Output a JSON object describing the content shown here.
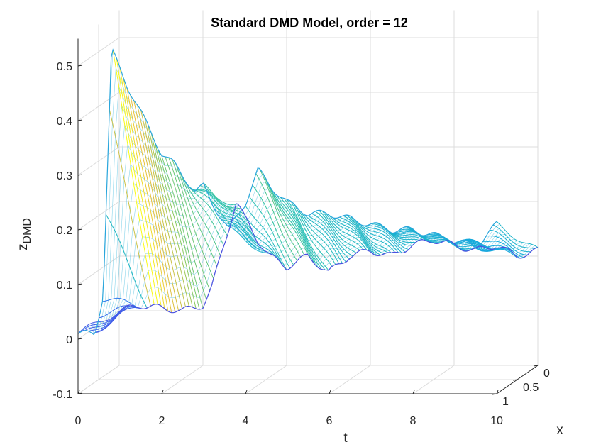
{
  "chart_data": {
    "type": "surface",
    "title": "Standard DMD Model, order = 12",
    "xlabel": "t",
    "ylabel": "x",
    "zlabel_main": "z",
    "zlabel_sub": "DMD",
    "t_ticks": [
      "0",
      "2",
      "4",
      "6",
      "8",
      "10"
    ],
    "x_ticks": [
      "0",
      "0.5",
      "1"
    ],
    "z_ticks": [
      "-0.1",
      "0",
      "0.1",
      "0.2",
      "0.3",
      "0.4",
      "0.5"
    ],
    "t_range": [
      0,
      10
    ],
    "x_range": [
      0,
      1
    ],
    "z_range": [
      -0.1,
      0.55
    ],
    "grid": true,
    "colormap": "parula",
    "series": [
      {
        "x_value": 0,
        "t": [
          0,
          0.4,
          0.6,
          0.8,
          1.2,
          1.6,
          2,
          2.3,
          2.6,
          2.8,
          3.0,
          3.2,
          3.6,
          4.0,
          4.3,
          4.6,
          5.0,
          5.5,
          6.0,
          6.5,
          7.0,
          7.5,
          8.0,
          8.5,
          9.0,
          9.5,
          10
        ],
        "z": [
          0.01,
          0.01,
          0.08,
          0.53,
          0.46,
          0.4,
          0.34,
          0.32,
          0.29,
          0.27,
          0.28,
          0.25,
          0.2,
          0.25,
          0.31,
          0.28,
          0.25,
          0.23,
          0.23,
          0.22,
          0.21,
          0.2,
          0.2,
          0.19,
          0.18,
          0.17,
          0.21
        ]
      },
      {
        "x_value": 1,
        "t": [
          0,
          0.5,
          1.0,
          1.5,
          2.0,
          2.2,
          2.5,
          2.8,
          3.0,
          3.3,
          3.6,
          4.0,
          4.5,
          5.0,
          5.5,
          6.0,
          6.5,
          7.0,
          7.5,
          8.0,
          8.5,
          9.0,
          9.5,
          10
        ],
        "z": [
          0.0,
          0.01,
          0.005,
          0.0,
          0.01,
          0.04,
          0.12,
          0.2,
          0.17,
          0.13,
          0.1,
          0.08,
          0.1,
          0.07,
          0.1,
          0.11,
          0.1,
          0.12,
          0.13,
          0.12,
          0.11,
          0.12,
          0.1,
          0.11
        ]
      }
    ]
  }
}
